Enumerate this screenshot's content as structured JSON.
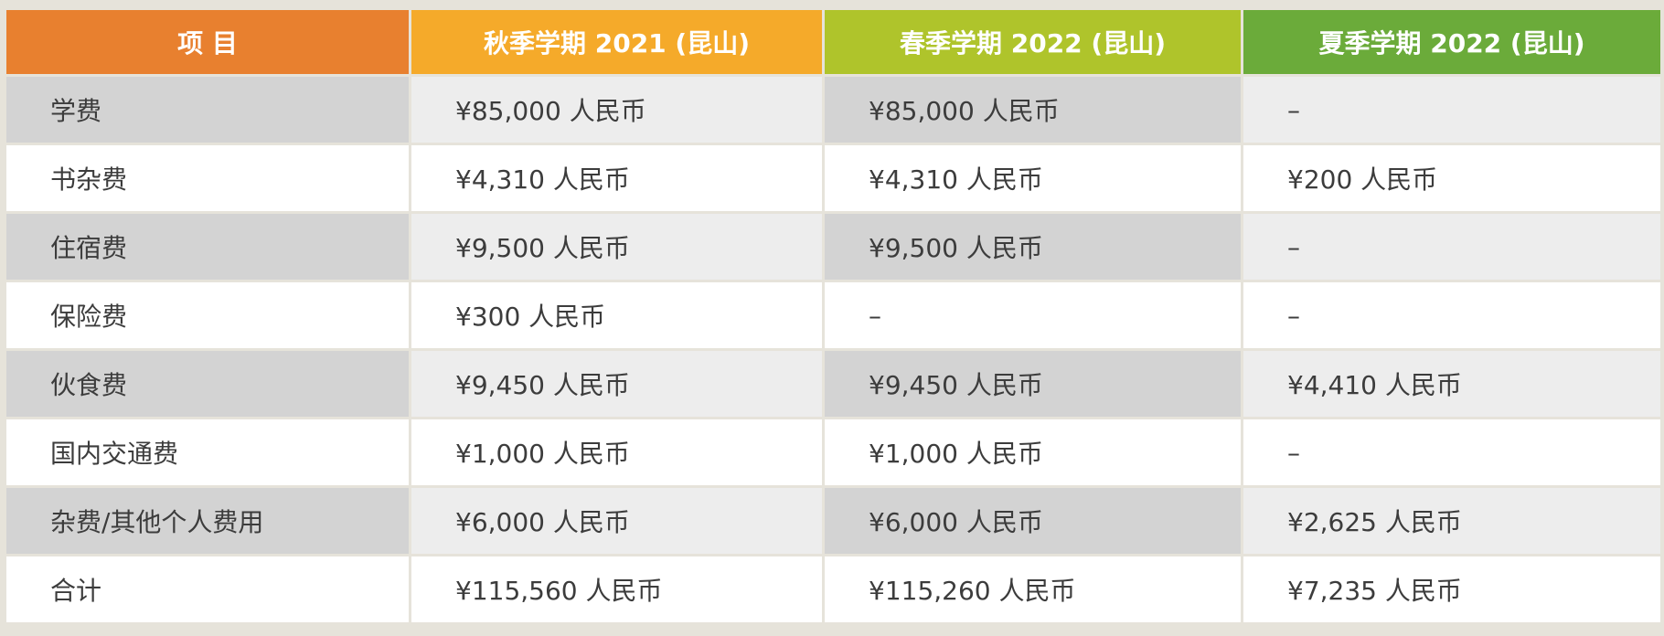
{
  "colors": {
    "header_item": "#e8802f",
    "header_fall": "#f5aa2a",
    "header_spring": "#afc42b",
    "header_summer": "#6bab3a",
    "row_shade_dark": "#d3d3d3",
    "row_shade_light": "#ededed",
    "row_plain": "#ffffff",
    "grid": "#e6e3da"
  },
  "table": {
    "headers": [
      "项 目",
      "秋季学期 2021 (昆山)",
      "春季学期 2022 (昆山)",
      "夏季学期 2022 (昆山)"
    ],
    "rows": [
      [
        "学费",
        "¥85,000 人民币",
        "¥85,000 人民币",
        "–"
      ],
      [
        "书杂费",
        "¥4,310 人民币",
        "¥4,310 人民币",
        "¥200 人民币"
      ],
      [
        "住宿费",
        "¥9,500 人民币",
        "¥9,500 人民币",
        "–"
      ],
      [
        "保险费",
        "¥300 人民币",
        "–",
        "–"
      ],
      [
        "伙食费",
        "¥9,450 人民币",
        "¥9,450 人民币",
        "¥4,410 人民币"
      ],
      [
        "国内交通费",
        "¥1,000 人民币",
        "¥1,000 人民币",
        "–"
      ],
      [
        "杂费/其他个人费用",
        "¥6,000 人民币",
        "¥6,000 人民币",
        "¥2,625 人民币"
      ],
      [
        "合计",
        "¥115,560 人民币",
        "¥115,260 人民币",
        "¥7,235 人民币"
      ]
    ]
  }
}
